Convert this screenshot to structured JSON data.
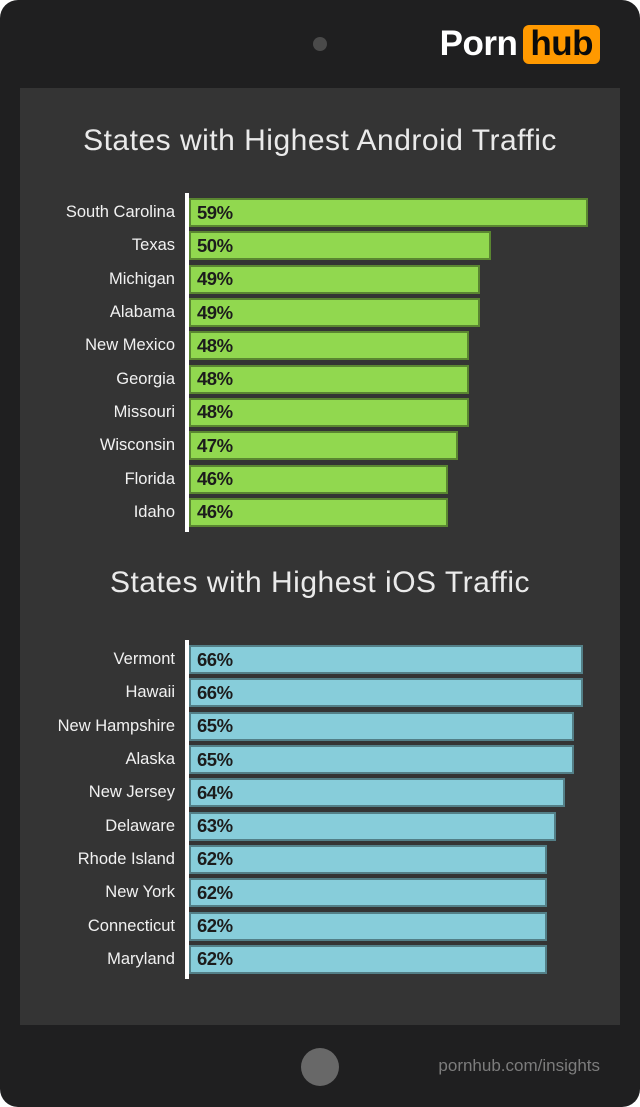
{
  "brand": {
    "word1": "Porn",
    "word2": "hub",
    "accent_color": "#ff9900"
  },
  "footer": {
    "url": "pornhub.com/insights"
  },
  "colors": {
    "frame": "#1f1f20",
    "panel": "#343434",
    "axis": "#ffffff",
    "android_bar": "#91d84f",
    "ios_bar": "#87cdda"
  },
  "chart_data": [
    {
      "type": "bar",
      "orientation": "horizontal",
      "title": "States with Highest Android Traffic",
      "unit": "%",
      "bar_color": "#91d84f",
      "xlim": [
        22,
        62
      ],
      "grid": false,
      "legend": false,
      "categories": [
        "South Carolina",
        "Texas",
        "Michigan",
        "Alabama",
        "New Mexico",
        "Georgia",
        "Missouri",
        "Wisconsin",
        "Florida",
        "Idaho"
      ],
      "values": [
        59,
        50,
        49,
        49,
        48,
        48,
        48,
        47,
        46,
        46
      ],
      "value_labels": [
        "59%",
        "50%",
        "49%",
        "49%",
        "48%",
        "48%",
        "48%",
        "47%",
        "46%",
        "46%"
      ]
    },
    {
      "type": "bar",
      "orientation": "horizontal",
      "title": "States with Highest iOS Traffic",
      "unit": "%",
      "bar_color": "#87cdda",
      "xlim": [
        23,
        70
      ],
      "grid": false,
      "legend": false,
      "categories": [
        "Vermont",
        "Hawaii",
        "New Hampshire",
        "Alaska",
        "New Jersey",
        "Delaware",
        "Rhode Island",
        "New York",
        "Connecticut",
        "Maryland"
      ],
      "values": [
        66,
        66,
        65,
        65,
        64,
        63,
        62,
        62,
        62,
        62
      ],
      "value_labels": [
        "66%",
        "66%",
        "65%",
        "65%",
        "64%",
        "63%",
        "62%",
        "62%",
        "62%",
        "62%"
      ]
    }
  ]
}
